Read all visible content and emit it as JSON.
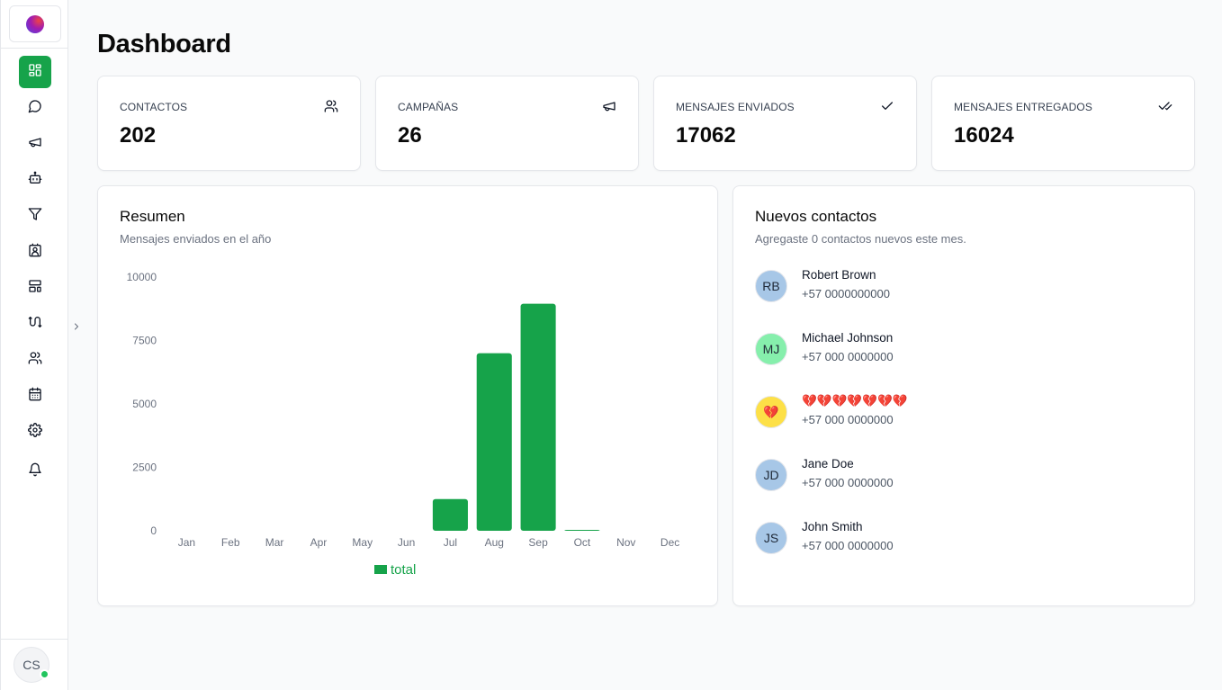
{
  "sidebar": {
    "items": [
      {
        "icon": "layout-grid-icon",
        "label": "Dashboard",
        "active": true
      },
      {
        "icon": "chat-bubble-icon",
        "label": "Chats",
        "active": false
      },
      {
        "icon": "megaphone-icon",
        "label": "Campañas",
        "active": false
      },
      {
        "icon": "bot-icon",
        "label": "Bots",
        "active": false
      },
      {
        "icon": "filter-icon",
        "label": "Filtros",
        "active": false
      },
      {
        "icon": "contact-card-icon",
        "label": "Contactos",
        "active": false
      },
      {
        "icon": "template-icon",
        "label": "Plantillas",
        "active": false
      },
      {
        "icon": "workflow-icon",
        "label": "Flujos",
        "active": false
      },
      {
        "icon": "users-icon",
        "label": "Usuarios",
        "active": false
      },
      {
        "icon": "calendar-icon",
        "label": "Calendario",
        "active": false
      },
      {
        "icon": "gear-icon",
        "label": "Configuración",
        "active": false
      },
      {
        "icon": "bell-icon",
        "label": "Notificaciones",
        "active": false
      }
    ],
    "user_initials": "CS",
    "user_status_color": "#22c55e"
  },
  "page": {
    "title": "Dashboard"
  },
  "stats": [
    {
      "label": "CONTACTOS",
      "value": "202",
      "icon": "users-icon"
    },
    {
      "label": "CAMPAÑAS",
      "value": "26",
      "icon": "megaphone-icon"
    },
    {
      "label": "MENSAJES ENVIADOS",
      "value": "17062",
      "icon": "check-icon"
    },
    {
      "label": "MENSAJES ENTREGADOS",
      "value": "16024",
      "icon": "double-check-icon"
    }
  ],
  "summary": {
    "title": "Resumen",
    "subtitle": "Mensajes enviados en el año"
  },
  "chart_data": {
    "type": "bar",
    "categories": [
      "Jan",
      "Feb",
      "Mar",
      "Apr",
      "May",
      "Jun",
      "Jul",
      "Aug",
      "Sep",
      "Oct",
      "Nov",
      "Dec"
    ],
    "series": [
      {
        "name": "total",
        "values": [
          0,
          0,
          0,
          0,
          0,
          0,
          1250,
          7000,
          8950,
          30,
          0,
          0
        ],
        "color": "#16a34a"
      }
    ],
    "yticks": [
      0,
      2500,
      5000,
      7500,
      10000
    ],
    "ylim": [
      0,
      10000
    ],
    "grid": false,
    "legend": "bottom-center"
  },
  "contacts_panel": {
    "title": "Nuevos contactos",
    "subtitle": "Agregaste 0 contactos nuevos este mes.",
    "contacts": [
      {
        "initials": "RB",
        "name": "Robert Brown",
        "phone": "+57 0000000000",
        "avatar_color": "#a7c7e7"
      },
      {
        "initials": "MJ",
        "name": "Michael Johnson",
        "phone": "+57 000 0000000",
        "avatar_color": "#86efac"
      },
      {
        "initials": "💔",
        "name": "💔💔💔💔💔💔💔",
        "phone": "+57 000 0000000",
        "avatar_color": "#fde047"
      },
      {
        "initials": "JD",
        "name": "Jane Doe",
        "phone": "+57 000 0000000",
        "avatar_color": "#a7c7e7"
      },
      {
        "initials": "JS",
        "name": "John Smith",
        "phone": "+57 000 0000000",
        "avatar_color": "#a7c7e7"
      }
    ]
  }
}
